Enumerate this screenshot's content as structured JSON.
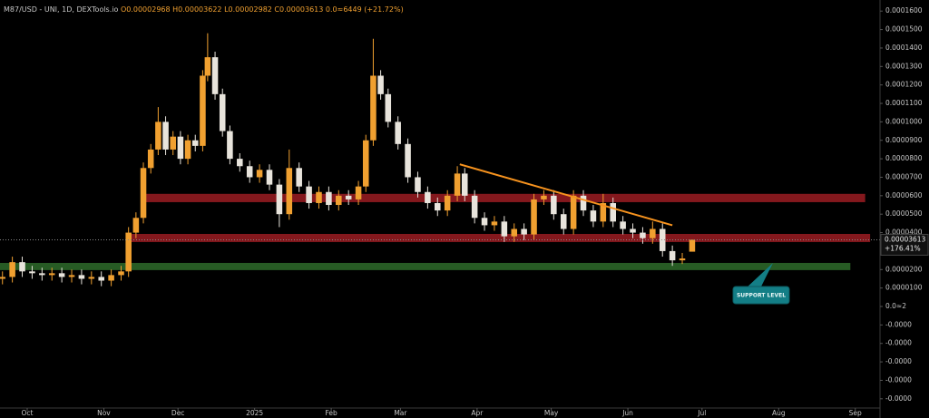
{
  "chart_data": {
    "type": "candlestick",
    "header": [
      "M87/USD - UNI, 1D, DEXTools.io",
      "O0.00002968",
      "H0.00003622",
      "L0.00002982",
      "C0.00003613",
      "0.0≈6449 (+21.72%)"
    ],
    "x": [
      -10,
      -6,
      -2,
      2,
      6,
      10,
      14,
      18,
      22,
      26,
      30,
      34,
      38,
      41,
      44,
      47,
      50,
      53,
      56,
      59,
      62,
      65,
      68,
      71,
      73,
      76,
      79,
      82,
      86,
      90,
      94,
      98,
      102,
      106,
      110,
      114,
      118,
      122,
      126,
      130,
      134,
      137,
      140,
      143,
      146,
      150,
      154,
      158,
      162,
      166,
      170,
      174,
      177,
      181,
      185,
      189,
      193,
      197,
      201,
      205,
      209,
      213,
      217,
      221,
      225,
      229,
      233,
      237,
      241,
      245,
      249,
      253,
      257,
      261,
      265,
      269
    ],
    "open": [
      1.5e-05,
      1.6e-05,
      2.4e-05,
      1.9e-05,
      1.8e-05,
      1.7e-05,
      1.8e-05,
      1.6e-05,
      1.7e-05,
      1.5e-05,
      1.6e-05,
      1.4e-05,
      1.7e-05,
      1.9e-05,
      4e-05,
      4.8e-05,
      7.5e-05,
      8.5e-05,
      0.0001,
      8.5e-05,
      9.2e-05,
      8e-05,
      9e-05,
      8.7e-05,
      0.000125,
      0.000135,
      0.000115,
      9.5e-05,
      8e-05,
      7.6e-05,
      7e-05,
      7.4e-05,
      6.6e-05,
      5e-05,
      7.5e-05,
      6.5e-05,
      5.6e-05,
      6.2e-05,
      5.5e-05,
      6e-05,
      5.8e-05,
      6.5e-05,
      9e-05,
      0.000125,
      0.000115,
      0.0001,
      8.8e-05,
      7e-05,
      6.2e-05,
      5.6e-05,
      5.2e-05,
      6e-05,
      7.2e-05,
      6e-05,
      4.8e-05,
      4.4e-05,
      4.6e-05,
      3.8e-05,
      4.2e-05,
      3.9e-05,
      5.8e-05,
      6e-05,
      5e-05,
      4.2e-05,
      6e-05,
      5.2e-05,
      4.6e-05,
      5.6e-05,
      4.6e-05,
      4.2e-05,
      4e-05,
      3.7e-05,
      4.2e-05,
      3e-05,
      2.5e-05,
      2.968e-05
    ],
    "high": [
      1.9e-05,
      2.7e-05,
      2.7e-05,
      2.2e-05,
      2.1e-05,
      2.1e-05,
      2.1e-05,
      2e-05,
      2e-05,
      1.9e-05,
      1.9e-05,
      2e-05,
      2.2e-05,
      4.3e-05,
      5.1e-05,
      7.8e-05,
      8.8e-05,
      0.000108,
      0.000103,
      9.5e-05,
      9.5e-05,
      9.3e-05,
      9.3e-05,
      0.000128,
      0.000148,
      0.000138,
      0.000118,
      9.8e-05,
      8.3e-05,
      7.9e-05,
      7.7e-05,
      7.7e-05,
      6.9e-05,
      8.5e-05,
      7.8e-05,
      6.8e-05,
      6.5e-05,
      6.5e-05,
      6.3e-05,
      6.3e-05,
      6.8e-05,
      9.3e-05,
      0.000145,
      0.000128,
      0.000118,
      0.000103,
      9.1e-05,
      7.3e-05,
      6.5e-05,
      5.9e-05,
      6.3e-05,
      7.6e-05,
      7.5e-05,
      6.3e-05,
      5.1e-05,
      4.9e-05,
      4.9e-05,
      4.5e-05,
      4.5e-05,
      6.1e-05,
      6.3e-05,
      6.3e-05,
      5.3e-05,
      6.3e-05,
      6.3e-05,
      5.5e-05,
      6.1e-05,
      5.9e-05,
      4.9e-05,
      4.5e-05,
      4.3e-05,
      4.6e-05,
      4.5e-05,
      3.3e-05,
      2.9e-05,
      3.622e-05
    ],
    "low": [
      1.2e-05,
      1.3e-05,
      1.6e-05,
      1.5e-05,
      1.4e-05,
      1.4e-05,
      1.3e-05,
      1.3e-05,
      1.2e-05,
      1.2e-05,
      1.1e-05,
      1.1e-05,
      1.4e-05,
      1.6e-05,
      3.7e-05,
      4.5e-05,
      7.2e-05,
      8.2e-05,
      8.2e-05,
      8.2e-05,
      7.7e-05,
      7.7e-05,
      8.4e-05,
      8.4e-05,
      0.000122,
      0.000112,
      9.2e-05,
      7.7e-05,
      7.3e-05,
      6.7e-05,
      6.7e-05,
      6.3e-05,
      4.3e-05,
      4.7e-05,
      6.2e-05,
      5.3e-05,
      5.3e-05,
      5.2e-05,
      5.2e-05,
      5.5e-05,
      5.5e-05,
      6.2e-05,
      8.7e-05,
      0.000112,
      9.7e-05,
      8.5e-05,
      6.7e-05,
      5.9e-05,
      5.3e-05,
      4.9e-05,
      4.9e-05,
      5.7e-05,
      5.7e-05,
      4.5e-05,
      4.1e-05,
      4.1e-05,
      3.5e-05,
      3.5e-05,
      3.6e-05,
      3.6e-05,
      5.5e-05,
      4.7e-05,
      3.9e-05,
      3.9e-05,
      4.9e-05,
      4.3e-05,
      4.3e-05,
      4.3e-05,
      3.9e-05,
      3.7e-05,
      3.4e-05,
      3.4e-05,
      2.7e-05,
      2.2e-05,
      2.3e-05,
      2.982e-05
    ],
    "close": [
      1.6e-05,
      2.4e-05,
      1.9e-05,
      1.8e-05,
      1.7e-05,
      1.8e-05,
      1.6e-05,
      1.7e-05,
      1.5e-05,
      1.6e-05,
      1.4e-05,
      1.7e-05,
      1.9e-05,
      4e-05,
      4.8e-05,
      7.5e-05,
      8.5e-05,
      0.0001,
      8.5e-05,
      9.2e-05,
      8e-05,
      9e-05,
      8.7e-05,
      0.000125,
      0.000135,
      0.000115,
      9.5e-05,
      8e-05,
      7.6e-05,
      7e-05,
      7.4e-05,
      6.6e-05,
      5e-05,
      7.5e-05,
      6.5e-05,
      5.6e-05,
      6.2e-05,
      5.5e-05,
      6e-05,
      5.8e-05,
      6.5e-05,
      9e-05,
      0.000125,
      0.000115,
      0.0001,
      8.8e-05,
      7e-05,
      6.2e-05,
      5.6e-05,
      5.2e-05,
      6e-05,
      7.2e-05,
      6e-05,
      4.8e-05,
      4.4e-05,
      4.6e-05,
      3.8e-05,
      4.2e-05,
      3.9e-05,
      5.8e-05,
      6e-05,
      5e-05,
      4.2e-05,
      6e-05,
      5.2e-05,
      4.6e-05,
      5.6e-05,
      4.6e-05,
      4.2e-05,
      4e-05,
      3.7e-05,
      4.2e-05,
      3e-05,
      2.5e-05,
      2.6e-05,
      3.613e-05
    ],
    "up_color": "#f0a030",
    "down_color": "#e8e4dc",
    "xlim": [
      -11,
      345
    ],
    "xticks": [
      {
        "value": 0,
        "label": "Oct"
      },
      {
        "value": 31,
        "label": "Nov"
      },
      {
        "value": 61,
        "label": "Dec"
      },
      {
        "value": 92,
        "label": "2025"
      },
      {
        "value": 123,
        "label": "Feb"
      },
      {
        "value": 151,
        "label": "Mar"
      },
      {
        "value": 182,
        "label": "Apr"
      },
      {
        "value": 212,
        "label": "May"
      },
      {
        "value": 243,
        "label": "Jun"
      },
      {
        "value": 273,
        "label": "Jul"
      },
      {
        "value": 304,
        "label": "Aug"
      },
      {
        "value": 335,
        "label": "Sep"
      }
    ],
    "ylim": [
      -5.5e-05,
      0.000166
    ],
    "yticks": [
      {
        "value": 0.00016,
        "label": "0.0001600"
      },
      {
        "value": 0.00015,
        "label": "0.0001500"
      },
      {
        "value": 0.00014,
        "label": "0.0001400"
      },
      {
        "value": 0.00013,
        "label": "0.0001300"
      },
      {
        "value": 0.00012,
        "label": "0.0001200"
      },
      {
        "value": 0.00011,
        "label": "0.0001100"
      },
      {
        "value": 0.0001,
        "label": "0.0001000"
      },
      {
        "value": 9e-05,
        "label": "0.0000900"
      },
      {
        "value": 8e-05,
        "label": "0.0000800"
      },
      {
        "value": 7e-05,
        "label": "0.0000700"
      },
      {
        "value": 6e-05,
        "label": "0.0000600"
      },
      {
        "value": 5e-05,
        "label": "0.0000500"
      },
      {
        "value": 4e-05,
        "label": "0.0000400"
      },
      {
        "value": 2e-05,
        "label": "0.0000200"
      },
      {
        "value": 1e-05,
        "label": "0.0000100"
      },
      {
        "value": 0,
        "label": "0.0≈2"
      },
      {
        "value": -1e-05,
        "label": "-0.0000"
      },
      {
        "value": -2e-05,
        "label": "-0.0000"
      },
      {
        "value": -3e-05,
        "label": "-0.0000"
      },
      {
        "value": -4e-05,
        "label": "-0.0000"
      },
      {
        "value": -5e-05,
        "label": "-0.0000"
      }
    ],
    "grid": false,
    "zones": [
      {
        "x": [
          47,
          339
        ],
        "y": [
          5.65e-05,
          6.1e-05
        ],
        "color": "#9b1c22"
      },
      {
        "x": [
          40,
          341
        ],
        "y": [
          3.49e-05,
          3.93e-05
        ],
        "color": "#9b1c22"
      },
      {
        "x": [
          -11,
          333
        ],
        "y": [
          1.97e-05,
          2.36e-05
        ],
        "color": "#2e6b2a"
      }
    ],
    "trendline": {
      "x": [
        175,
        261
      ],
      "y": [
        7.7e-05,
        4.4e-05
      ],
      "color": "#f7931e"
    },
    "last_price_label": "0.00003613",
    "change_label": "+176.41%",
    "annotation": "SUPPORT LEVEL"
  }
}
